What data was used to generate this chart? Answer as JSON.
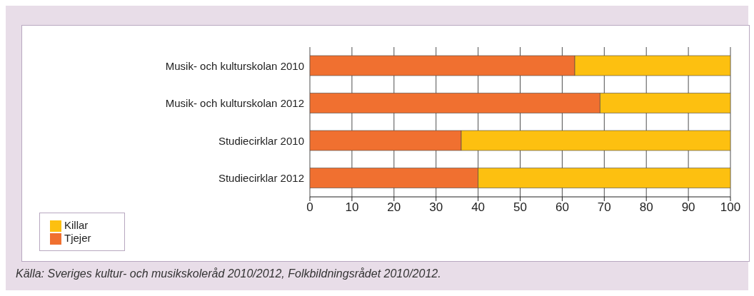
{
  "chart_data": {
    "type": "bar",
    "orientation": "horizontal",
    "stacked": true,
    "categories": [
      "Musik- och kulturskolan 2010",
      "Musik- och kulturskolan 2012",
      "Studiecirklar 2010",
      "Studiecirklar 2012"
    ],
    "series": [
      {
        "name": "Tjejer",
        "color": "#f07030",
        "values": [
          63,
          69,
          36,
          40
        ]
      },
      {
        "name": "Killar",
        "color": "#fdc010",
        "values": [
          37,
          31,
          64,
          60
        ]
      }
    ],
    "xlim": [
      0,
      100
    ],
    "xticks": [
      0,
      10,
      20,
      30,
      40,
      50,
      60,
      70,
      80,
      90,
      100
    ],
    "grid": "x",
    "legend": "bottom left",
    "annotations": [
      "Källa: Sveriges kultur- och musikskoleråd 2010/2012, Folkbildningsrådet 2010/2012."
    ]
  }
}
